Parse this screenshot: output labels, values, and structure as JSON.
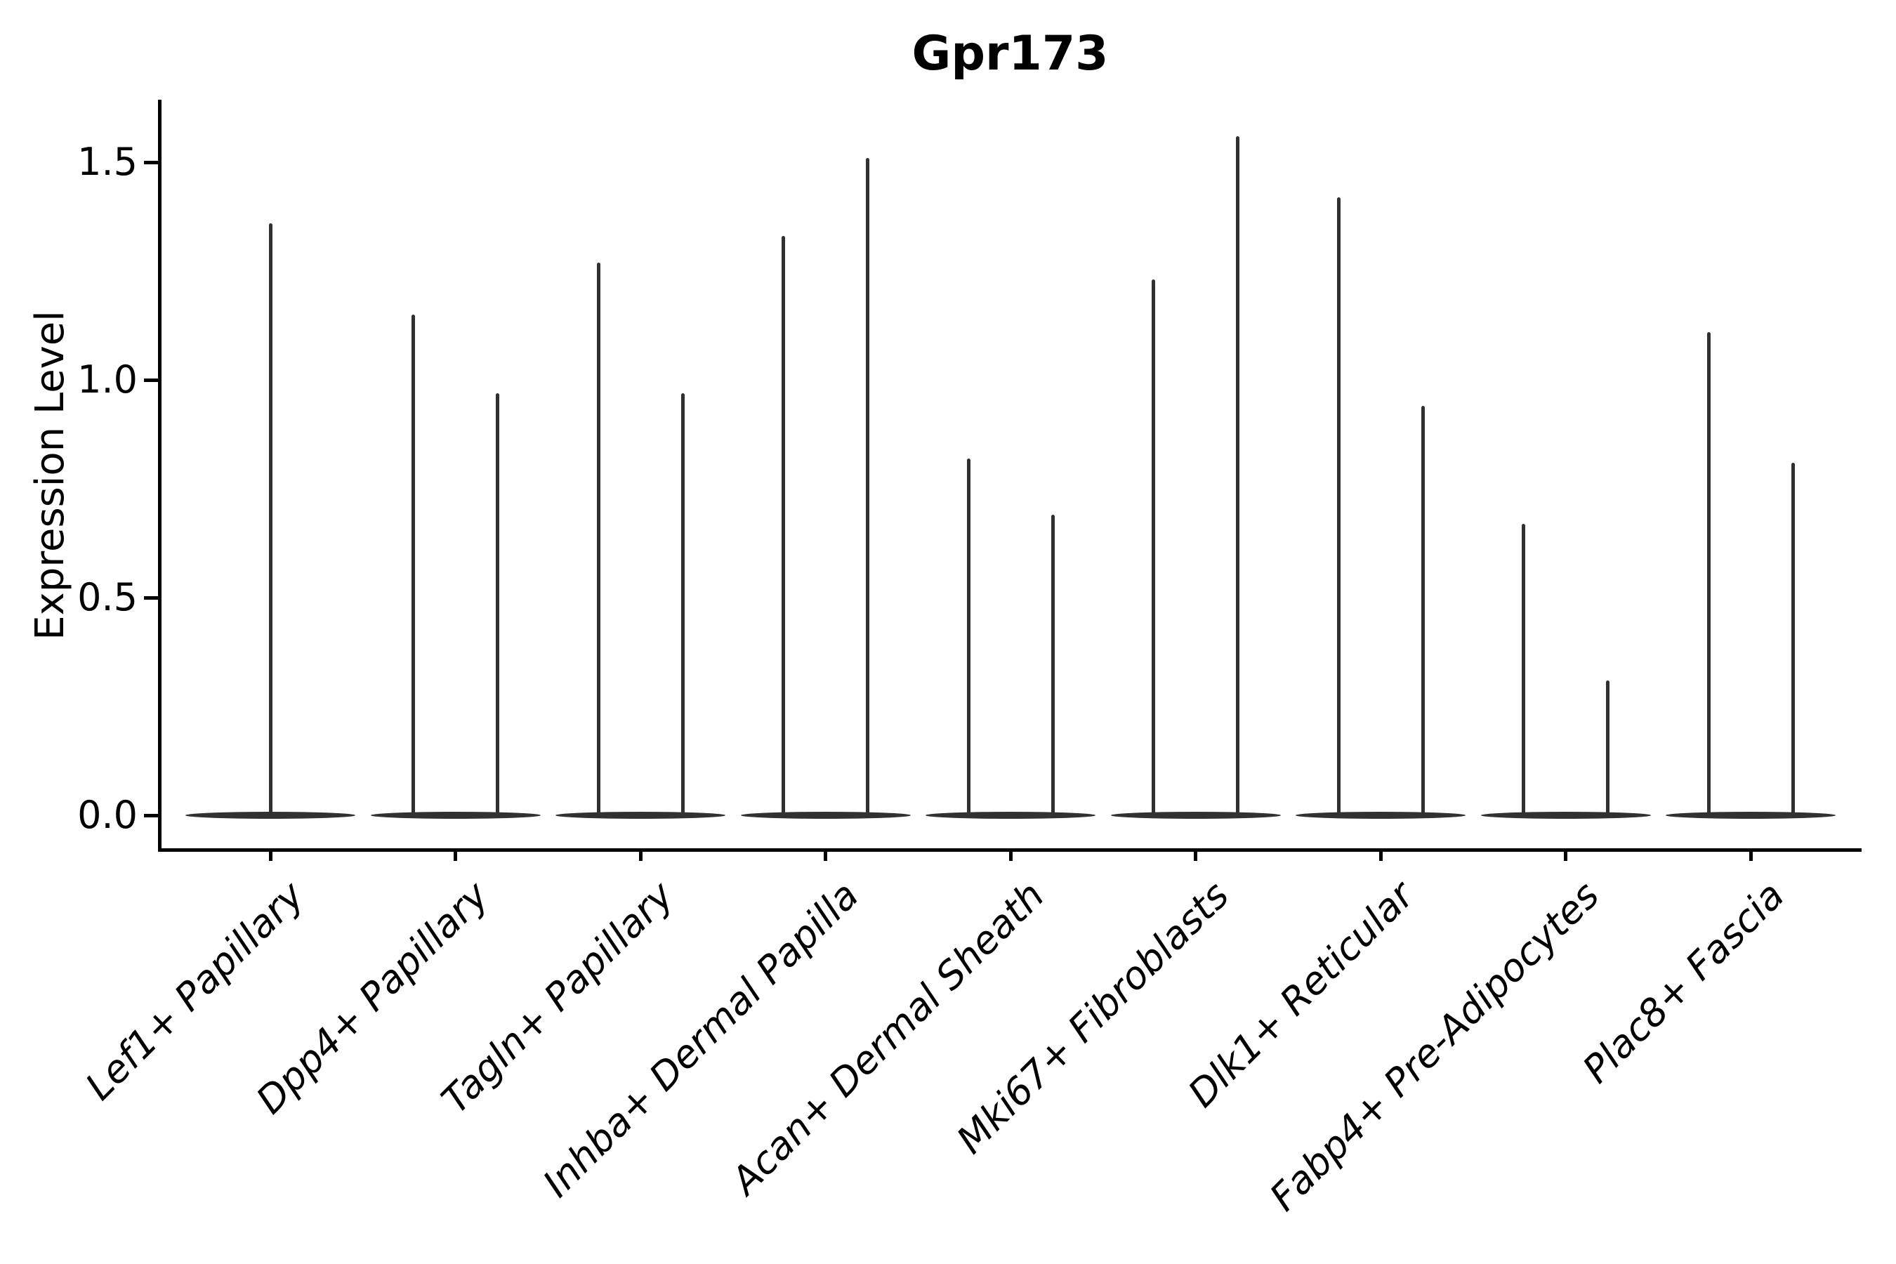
{
  "title": "Gpr173",
  "axes": {
    "ylabel": "Expression Level",
    "ytick_labels": [
      "0.0",
      "0.5",
      "1.0",
      "1.5"
    ]
  },
  "chart_data": {
    "type": "violin",
    "title": "Gpr173",
    "xlabel": "",
    "ylabel": "Expression Level",
    "yticks": [
      0.0,
      0.5,
      1.0,
      1.5
    ],
    "ylim": [
      -0.08,
      1.64
    ],
    "grid": false,
    "legend": "none",
    "categories": [
      "Lef1+ Papillary",
      "Dpp4+ Papillary",
      "Tagln+ Papillary",
      "Inhba+ Dermal Papilla",
      "Acan+ Dermal Sheath",
      "Mki67+ Fibroblasts",
      "Dlk1+ Reticular",
      "Fabp4+ Pre-Adipocytes",
      "Plac8+ Fascia"
    ],
    "violins": [
      {
        "category": "Lef1+ Papillary",
        "zero_bulge_at": 0.0,
        "spike_max_values": [
          1.36
        ]
      },
      {
        "category": "Dpp4+ Papillary",
        "zero_bulge_at": 0.0,
        "spike_max_values": [
          1.15,
          0.97
        ]
      },
      {
        "category": "Tagln+ Papillary",
        "zero_bulge_at": 0.0,
        "spike_max_values": [
          1.27,
          0.97
        ]
      },
      {
        "category": "Inhba+ Dermal Papilla",
        "zero_bulge_at": 0.0,
        "spike_max_values": [
          1.33,
          1.51
        ]
      },
      {
        "category": "Acan+ Dermal Sheath",
        "zero_bulge_at": 0.0,
        "spike_max_values": [
          0.82,
          0.69
        ]
      },
      {
        "category": "Mki67+ Fibroblasts",
        "zero_bulge_at": 0.0,
        "spike_max_values": [
          1.23,
          1.56
        ]
      },
      {
        "category": "Dlk1+ Reticular",
        "zero_bulge_at": 0.0,
        "spike_max_values": [
          1.42,
          0.94
        ]
      },
      {
        "category": "Fabp4+ Pre-Adipocytes",
        "zero_bulge_at": 0.0,
        "spike_max_values": [
          0.67,
          0.31
        ]
      },
      {
        "category": "Plac8+ Fascia",
        "zero_bulge_at": 0.0,
        "spike_max_values": [
          1.11,
          0.81
        ]
      }
    ],
    "style_notes": {
      "violin_color": "#313131",
      "axis_color": "#000000",
      "xtick_label_style": "italic, rotated 45deg, right-anchored",
      "description": "Expression mostly zero per cell type: each violin renders as a wide flat bulge at 0 with thin spike(s) reaching the maximum expression value."
    }
  }
}
